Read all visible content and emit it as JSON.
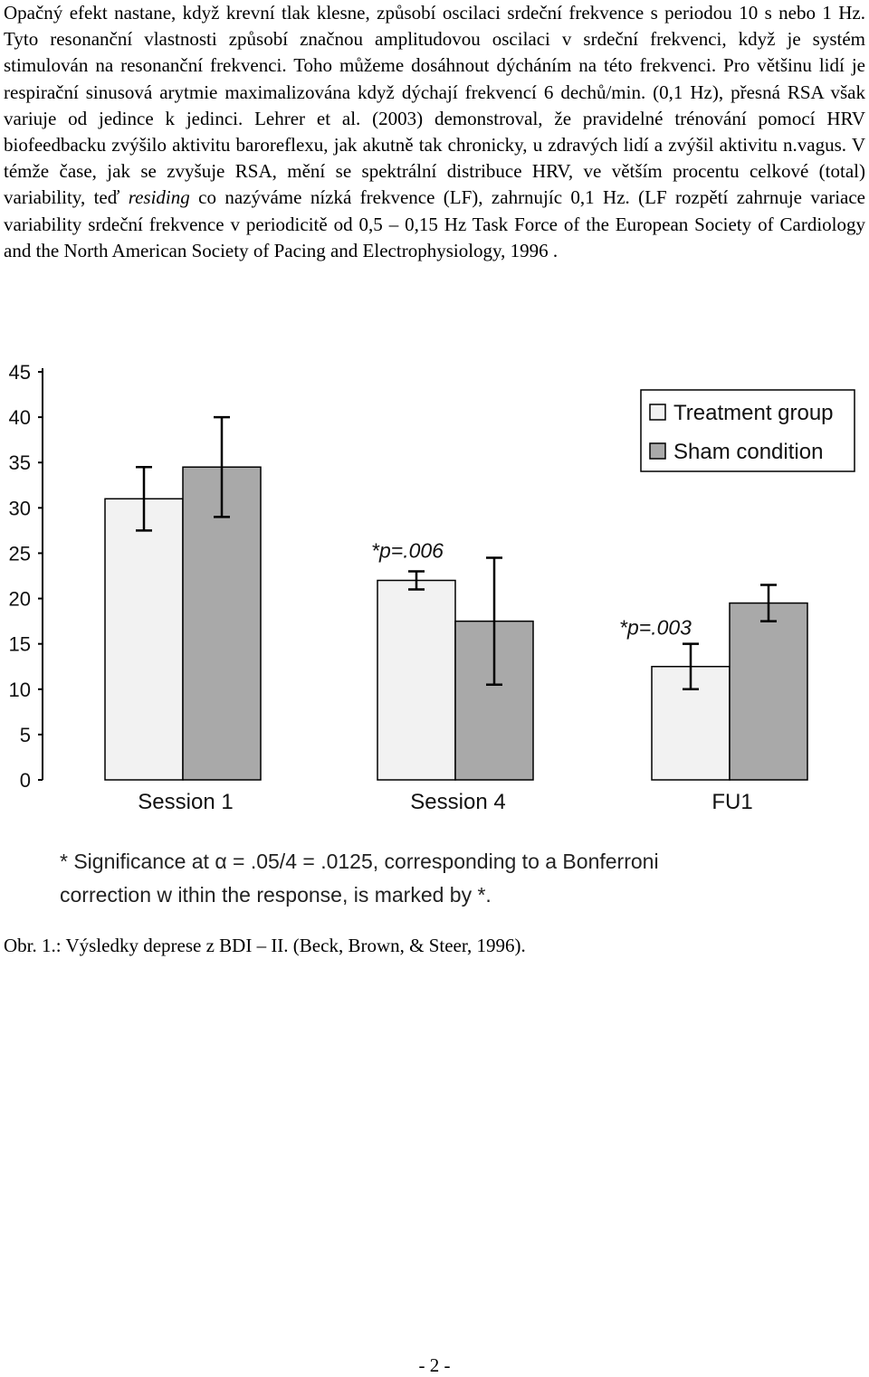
{
  "document": {
    "paragraph_before": "Opačný efekt nastane, když krevní tlak klesne, způsobí oscilaci srdeční frekvence s periodou 10 s nebo 1 Hz. Tyto resonanční vlastnosti způsobí značnou amplitudovou oscilaci v srdeční frekvenci, když je systém stimulován na resonanční frekvenci. Toho můžeme dosáhnout dýcháním na této frekvenci. Pro většinu lidí je respirační sinusová arytmie maximalizována když dýchají frekvencí 6 dechů/min. (0,1 Hz), přesná RSA však variuje od jedince k jedinci. Lehrer et al. (2003) demonstroval, že pravidelné trénování pomocí HRV biofeedbacku zvýšilo aktivitu baroreflexu, jak akutně tak chronicky, u zdravých lidí a zvýšil aktivitu n.vagus. V témže čase, jak se zvyšuje RSA, mění se spektrální distribuce HRV, ve větším procentu celkové (total) variability, teď ",
    "paragraph_italic": "residing",
    "paragraph_after": " co nazýváme nízká frekvence (LF), zahrnujíc 0,1 Hz. (LF rozpětí zahrnuje variace variability srdeční frekvence v periodicitě od 0,5 – 0,15 Hz Task Force of the European Society of Cardiology and the North American Society of Pacing and Electrophysiology, 1996 .",
    "footnote_line1": "* Significance at α = .05/4 = .0125, corresponding to a Bonferroni",
    "footnote_line2": "correction w ithin the response, is marked by *.",
    "caption": "Obr. 1.: Výsledky deprese z BDI – II. (Beck, Brown, & Steer, 1996).",
    "page_number": "- 2 -"
  },
  "chart_data": {
    "type": "bar",
    "categories": [
      "Session 1",
      "Session 4",
      "FU1"
    ],
    "series": [
      {
        "name": "Treatment group",
        "color": "#f2f2f2",
        "values": [
          31,
          22,
          12.5
        ],
        "error": [
          3.5,
          1,
          2.5
        ]
      },
      {
        "name": "Sham condition",
        "color": "#a9a9a9",
        "values": [
          34.5,
          17.5,
          19.5
        ],
        "error": [
          5.5,
          7,
          2
        ]
      }
    ],
    "ylim": [
      0,
      45
    ],
    "yticks": [
      0,
      5,
      10,
      15,
      20,
      25,
      30,
      35,
      40,
      45
    ],
    "annotations": [
      {
        "category": "Session 4",
        "text": "*p=.006"
      },
      {
        "category": "FU1",
        "text": "*p=.003"
      }
    ],
    "legend_position": "top-right",
    "grid": false
  }
}
